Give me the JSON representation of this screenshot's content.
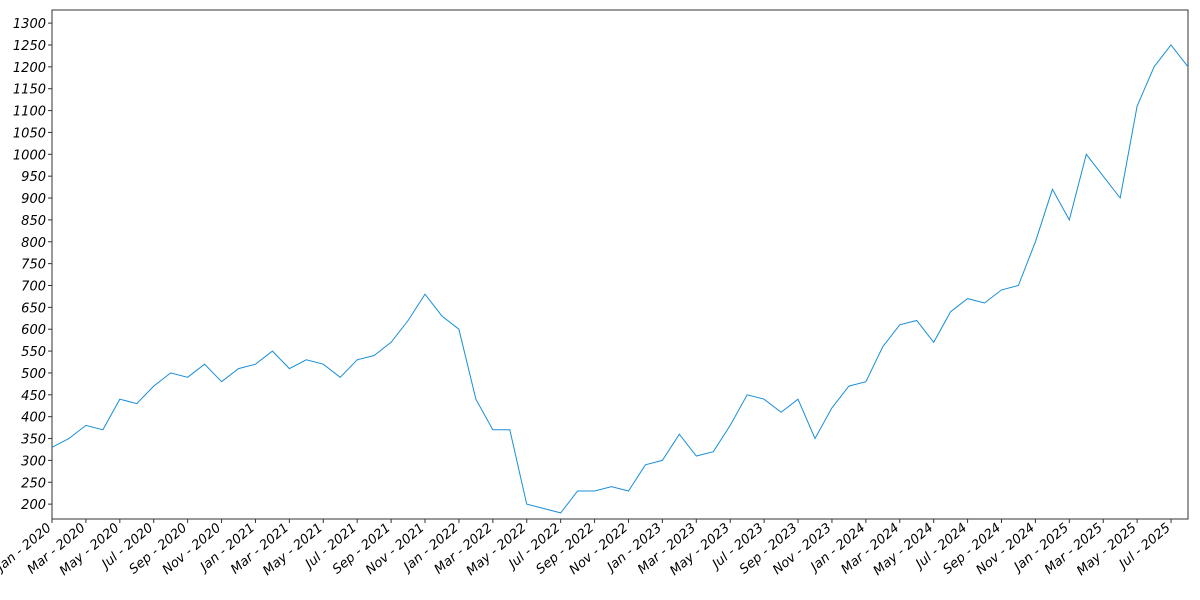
{
  "chart_data": {
    "type": "line",
    "x": [
      "2020-01",
      "2020-02",
      "2020-03",
      "2020-04",
      "2020-05",
      "2020-06",
      "2020-07",
      "2020-08",
      "2020-09",
      "2020-10",
      "2020-11",
      "2020-12",
      "2021-01",
      "2021-02",
      "2021-03",
      "2021-04",
      "2021-05",
      "2021-06",
      "2021-07",
      "2021-08",
      "2021-09",
      "2021-10",
      "2021-11",
      "2021-12",
      "2022-01",
      "2022-02",
      "2022-03",
      "2022-04",
      "2022-05",
      "2022-06",
      "2022-07",
      "2022-08",
      "2022-09",
      "2022-10",
      "2022-11",
      "2022-12",
      "2023-01",
      "2023-02",
      "2023-03",
      "2023-04",
      "2023-05",
      "2023-06",
      "2023-07",
      "2023-08",
      "2023-09",
      "2023-10",
      "2023-11",
      "2023-12",
      "2024-01",
      "2024-02",
      "2024-03",
      "2024-04",
      "2024-05",
      "2024-06",
      "2024-07",
      "2024-08",
      "2024-09",
      "2024-10",
      "2024-11",
      "2024-12",
      "2025-01",
      "2025-02",
      "2025-03",
      "2025-04",
      "2025-05",
      "2025-06",
      "2025-07",
      "2025-08"
    ],
    "series": [
      {
        "color": "#1a8fd6",
        "values": [
          330,
          350,
          380,
          370,
          440,
          430,
          470,
          500,
          490,
          520,
          480,
          510,
          520,
          550,
          510,
          530,
          520,
          490,
          530,
          540,
          570,
          620,
          680,
          630,
          600,
          440,
          370,
          370,
          200,
          190,
          180,
          230,
          230,
          240,
          230,
          290,
          300,
          360,
          310,
          320,
          380,
          450,
          440,
          410,
          440,
          350,
          420,
          470,
          480,
          560,
          610,
          620,
          570,
          640,
          670,
          660,
          690,
          700,
          800,
          920,
          850,
          1000,
          950,
          900,
          1110,
          1200,
          1250,
          1200
        ]
      }
    ],
    "xlim": [
      "2020-01",
      "2025-08"
    ],
    "ylim": [
      166,
      1330
    ],
    "yticks": [
      200,
      250,
      300,
      350,
      400,
      450,
      500,
      550,
      600,
      650,
      700,
      750,
      800,
      850,
      900,
      950,
      1000,
      1050,
      1100,
      1150,
      1200,
      1250,
      1300
    ],
    "xticks": [
      {
        "value": "2020-01",
        "label": "Jan - 2020"
      },
      {
        "value": "2020-03",
        "label": "Mar - 2020"
      },
      {
        "value": "2020-05",
        "label": "May - 2020"
      },
      {
        "value": "2020-07",
        "label": "Jul - 2020"
      },
      {
        "value": "2020-09",
        "label": "Sep - 2020"
      },
      {
        "value": "2020-11",
        "label": "Nov - 2020"
      },
      {
        "value": "2021-01",
        "label": "Jan - 2021"
      },
      {
        "value": "2021-03",
        "label": "Mar - 2021"
      },
      {
        "value": "2021-05",
        "label": "May - 2021"
      },
      {
        "value": "2021-07",
        "label": "Jul - 2021"
      },
      {
        "value": "2021-09",
        "label": "Sep - 2021"
      },
      {
        "value": "2021-11",
        "label": "Nov - 2021"
      },
      {
        "value": "2022-01",
        "label": "Jan - 2022"
      },
      {
        "value": "2022-03",
        "label": "Mar - 2022"
      },
      {
        "value": "2022-05",
        "label": "May - 2022"
      },
      {
        "value": "2022-07",
        "label": "Jul - 2022"
      },
      {
        "value": "2022-09",
        "label": "Sep - 2022"
      },
      {
        "value": "2022-11",
        "label": "Nov - 2022"
      },
      {
        "value": "2023-01",
        "label": "Jan - 2023"
      },
      {
        "value": "2023-03",
        "label": "Mar - 2023"
      },
      {
        "value": "2023-05",
        "label": "May - 2023"
      },
      {
        "value": "2023-07",
        "label": "Jul - 2023"
      },
      {
        "value": "2023-09",
        "label": "Sep - 2023"
      },
      {
        "value": "2023-11",
        "label": "Nov - 2023"
      },
      {
        "value": "2024-01",
        "label": "Jan - 2024"
      },
      {
        "value": "2024-03",
        "label": "Mar - 2024"
      },
      {
        "value": "2024-05",
        "label": "May - 2024"
      },
      {
        "value": "2024-07",
        "label": "Jul - 2024"
      },
      {
        "value": "2024-09",
        "label": "Sep - 2024"
      },
      {
        "value": "2024-11",
        "label": "Nov - 2024"
      },
      {
        "value": "2025-01",
        "label": "Jan - 2025"
      },
      {
        "value": "2025-03",
        "label": "Mar - 2025"
      },
      {
        "value": "2025-05",
        "label": "May - 2025"
      },
      {
        "value": "2025-07",
        "label": "Jul - 2025"
      }
    ]
  }
}
